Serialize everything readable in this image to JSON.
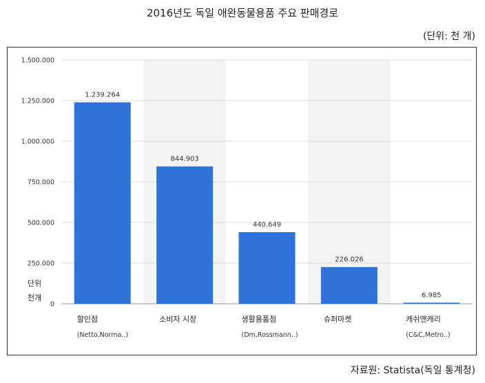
{
  "title": "2016년도 독일 애완동물용품 주요 판매경로",
  "unit_note": "(단위: 천 개)",
  "source": "자료원: Statista(독일 통계청)",
  "bar_color": "#2f73d8",
  "band_color": "#f3f3f3",
  "chart_data": {
    "type": "bar",
    "title": "2016년도 독일 애완동물용품 주요 판매경로",
    "ylabel": "단위 천개",
    "ylim": [
      0,
      1500000
    ],
    "yticks": [
      0,
      250000,
      500000,
      750000,
      1000000,
      1250000,
      1500000
    ],
    "ytick_labels": [
      "0",
      "250.000",
      "500.000",
      "750.000",
      "1.000.000",
      "1.250.000",
      "1.500.000"
    ],
    "categories": [
      {
        "name": "할인점",
        "sub": "(Netto,Norma..)"
      },
      {
        "name": "소비자 시장",
        "sub": ""
      },
      {
        "name": "생활용품점",
        "sub": "(Dm,Rossmann..)"
      },
      {
        "name": "슈퍼마켓",
        "sub": ""
      },
      {
        "name": "캐쉬앤캐리",
        "sub": "(C&C,Metro..)"
      }
    ],
    "values": [
      1239264,
      844903,
      440649,
      226026,
      6985
    ],
    "value_labels": [
      "1.239.264",
      "844.903",
      "440.649",
      "226.026",
      "6.985"
    ],
    "ylabel_lines": [
      "단위",
      "천개"
    ]
  }
}
